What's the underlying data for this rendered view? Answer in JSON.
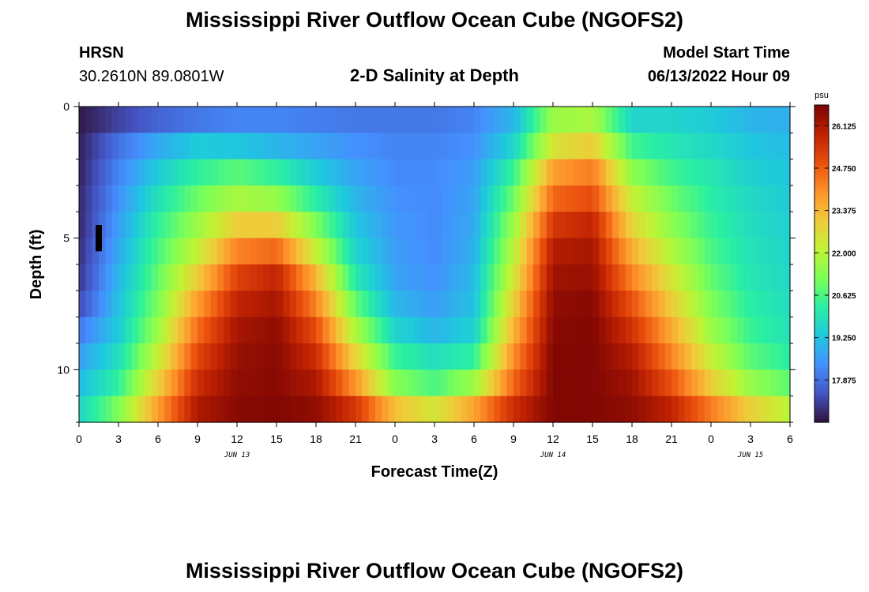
{
  "page": {
    "title": "Mississippi River Outflow Ocean Cube (NGOFS2)",
    "station": "HRSN",
    "coordinates": "30.2610N  89.0801W",
    "plot_title": "2-D Salinity at Depth",
    "model_start_label": "Model Start Time",
    "model_start_value": "06/13/2022 Hour 09",
    "second_title": "Mississippi River Outflow Ocean Cube (NGOFS2)"
  },
  "colors": {
    "colormap": [
      "#30123b",
      "#4454c4",
      "#4490fe",
      "#1fc8de",
      "#29efa2",
      "#7dff56",
      "#c1f334",
      "#f1ca3a",
      "#fe922a",
      "#ea4f0d",
      "#be2102",
      "#7a0403"
    ],
    "marker": "#000000"
  },
  "chart_data": {
    "type": "heatmap",
    "title": "2-D Salinity at Depth",
    "xlabel": "Forecast Time(Z)",
    "ylabel": "Depth (ft)",
    "x_hours": [
      0,
      54
    ],
    "x_tick_step_hours": 3,
    "x_tick_labels": [
      "0",
      "3",
      "6",
      "9",
      "12",
      "15",
      "18",
      "21",
      "0",
      "3",
      "6",
      "9",
      "12",
      "15",
      "18",
      "21",
      "0",
      "3",
      "6"
    ],
    "date_labels": [
      {
        "hour": 12,
        "text": "JUN 13"
      },
      {
        "hour": 36,
        "text": "JUN 14"
      },
      {
        "hour": 51,
        "text": "JUN 15"
      }
    ],
    "ylim": [
      0,
      12
    ],
    "y_tick_values": [
      0,
      5,
      10
    ],
    "y_tick_labels": [
      "0",
      "5",
      "10"
    ],
    "colorbar": {
      "unit": "psu",
      "range": [
        16.5,
        26.8
      ],
      "ticks": [
        17.875,
        19.25,
        20.625,
        22.0,
        23.375,
        24.75,
        26.125
      ],
      "tick_labels": [
        "17.875",
        "19.250",
        "20.625",
        "22.000",
        "23.375",
        "24.750",
        "26.125"
      ]
    },
    "time_hours": [
      0,
      3,
      6,
      9,
      12,
      15,
      18,
      21,
      24,
      27,
      30,
      33,
      36,
      39,
      42,
      45,
      48,
      51,
      54
    ],
    "depth_ft": [
      0.5,
      1.5,
      2.5,
      3.5,
      4.5,
      5.5,
      6.5,
      7.5,
      8.5,
      9.5,
      10.5,
      11.5
    ],
    "salinity_psu": [
      [
        16.6,
        17.2,
        17.7,
        18.0,
        18.2,
        18.2,
        18.1,
        18.0,
        18.0,
        18.0,
        18.2,
        19.0,
        21.6,
        21.8,
        19.6,
        19.6,
        19.4,
        19.0,
        18.9
      ],
      [
        16.7,
        17.9,
        18.8,
        19.4,
        19.3,
        19.0,
        18.7,
        18.4,
        18.2,
        18.2,
        18.4,
        19.6,
        22.5,
        23.0,
        20.5,
        20.0,
        19.7,
        19.3,
        19.1
      ],
      [
        16.7,
        18.2,
        19.4,
        20.3,
        20.8,
        20.3,
        19.4,
        18.7,
        18.3,
        18.3,
        18.6,
        20.4,
        23.8,
        24.3,
        21.4,
        20.5,
        20.0,
        19.5,
        19.3
      ],
      [
        16.8,
        18.4,
        19.9,
        21.0,
        21.8,
        21.5,
        20.2,
        19.0,
        18.4,
        18.3,
        18.7,
        21.0,
        24.6,
        25.0,
        22.2,
        21.0,
        20.2,
        19.7,
        19.4
      ],
      [
        16.8,
        18.6,
        20.3,
        21.6,
        23.0,
        23.0,
        21.2,
        19.3,
        18.5,
        18.3,
        18.8,
        21.6,
        25.4,
        25.8,
        22.8,
        21.4,
        20.4,
        19.8,
        19.5
      ],
      [
        16.9,
        18.8,
        20.6,
        22.2,
        24.2,
        24.6,
        22.2,
        19.6,
        18.6,
        18.3,
        18.9,
        22.0,
        26.0,
        26.2,
        23.5,
        21.9,
        20.6,
        19.9,
        19.6
      ],
      [
        17.0,
        19.0,
        20.9,
        23.0,
        25.2,
        25.8,
        23.4,
        20.1,
        18.7,
        18.4,
        19.1,
        22.4,
        26.3,
        26.4,
        24.2,
        22.5,
        20.9,
        20.0,
        19.7
      ],
      [
        17.3,
        19.2,
        21.2,
        23.8,
        25.8,
        26.2,
        24.2,
        20.9,
        19.0,
        18.6,
        19.2,
        22.9,
        26.5,
        26.6,
        24.9,
        23.0,
        21.2,
        20.2,
        19.8
      ],
      [
        18.0,
        19.4,
        21.6,
        24.5,
        26.2,
        26.5,
        25.0,
        21.8,
        19.6,
        19.0,
        19.5,
        23.4,
        26.6,
        26.7,
        25.5,
        23.6,
        21.6,
        20.4,
        19.9
      ],
      [
        18.6,
        19.8,
        22.2,
        25.1,
        26.4,
        26.6,
        25.6,
        22.8,
        20.4,
        19.8,
        20.3,
        24.0,
        26.7,
        26.7,
        26.0,
        24.2,
        22.2,
        20.8,
        20.2
      ],
      [
        19.1,
        20.3,
        22.9,
        25.6,
        26.5,
        26.6,
        26.1,
        23.9,
        21.3,
        20.6,
        21.6,
        24.6,
        26.7,
        26.7,
        26.3,
        24.9,
        23.0,
        21.5,
        20.8
      ],
      [
        19.6,
        21.2,
        23.8,
        26.1,
        26.6,
        26.7,
        26.5,
        25.4,
        23.2,
        22.4,
        23.7,
        25.6,
        26.7,
        26.7,
        26.5,
        25.8,
        24.3,
        22.9,
        22.0
      ]
    ],
    "marker": {
      "hour": 1.5,
      "depth_range": [
        4.5,
        5.5
      ]
    }
  }
}
